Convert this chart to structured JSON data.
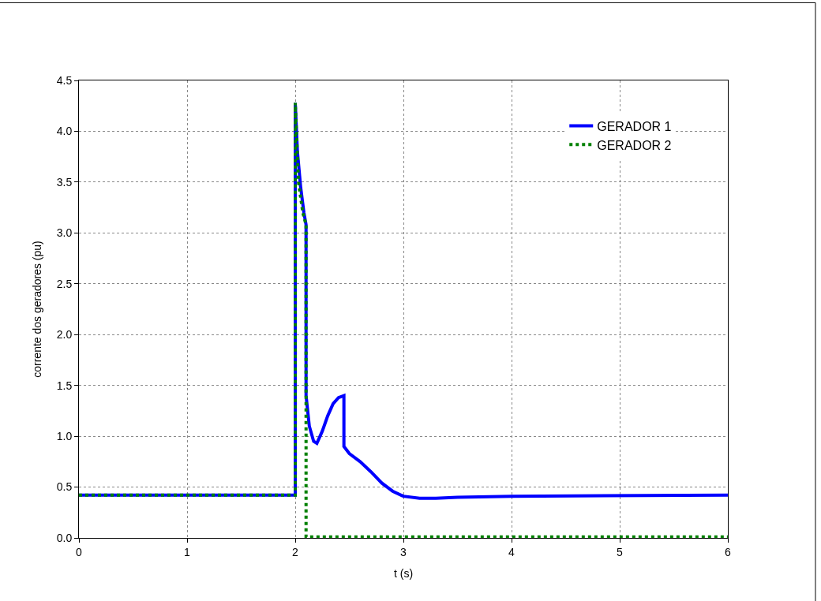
{
  "chart_data": {
    "type": "line",
    "xlabel": "t (s)",
    "ylabel": "corrente dos geradores (pu)",
    "xlim": [
      0,
      6
    ],
    "xticks": [
      0,
      1,
      2,
      3,
      4,
      5,
      6
    ],
    "ylim": [
      0,
      4.5
    ],
    "yticks": [
      {
        "value": 0,
        "label": "0.0"
      },
      {
        "value": 0.5,
        "label": "0.5"
      },
      {
        "value": 1,
        "label": "1.0"
      },
      {
        "value": 1.5,
        "label": "1.5"
      },
      {
        "value": 2,
        "label": "2.0"
      },
      {
        "value": 2.5,
        "label": "2.5"
      },
      {
        "value": 3,
        "label": "3.0"
      },
      {
        "value": 3.5,
        "label": "3.5"
      },
      {
        "value": 4,
        "label": "4.0"
      },
      {
        "value": 4.5,
        "label": "4.5"
      }
    ],
    "grid": true,
    "legend": "top right",
    "series": [
      {
        "name": "GERADOR 1",
        "color": "#0000ff",
        "line_style": "solid",
        "x": [
          0,
          2.0,
          2.0,
          2.02,
          2.05,
          2.08,
          2.1,
          2.1,
          2.13,
          2.17,
          2.2,
          2.25,
          2.3,
          2.35,
          2.4,
          2.45,
          2.45,
          2.5,
          2.6,
          2.7,
          2.8,
          2.9,
          3.0,
          3.15,
          3.3,
          3.5,
          4,
          6
        ],
        "values": [
          0.42,
          0.42,
          4.28,
          3.8,
          3.45,
          3.2,
          3.08,
          1.4,
          1.1,
          0.95,
          0.93,
          1.05,
          1.2,
          1.32,
          1.38,
          1.4,
          0.9,
          0.83,
          0.75,
          0.65,
          0.54,
          0.46,
          0.41,
          0.39,
          0.39,
          0.4,
          0.41,
          0.42
        ]
      },
      {
        "name": "GERADOR 2",
        "color": "#008000",
        "line_style": "dotted",
        "x": [
          0,
          2.0,
          2.0,
          2.03,
          2.07,
          2.1,
          2.1,
          6
        ],
        "values": [
          0.42,
          0.42,
          4.28,
          3.5,
          3.2,
          3.08,
          0.01,
          0.01
        ]
      }
    ]
  }
}
